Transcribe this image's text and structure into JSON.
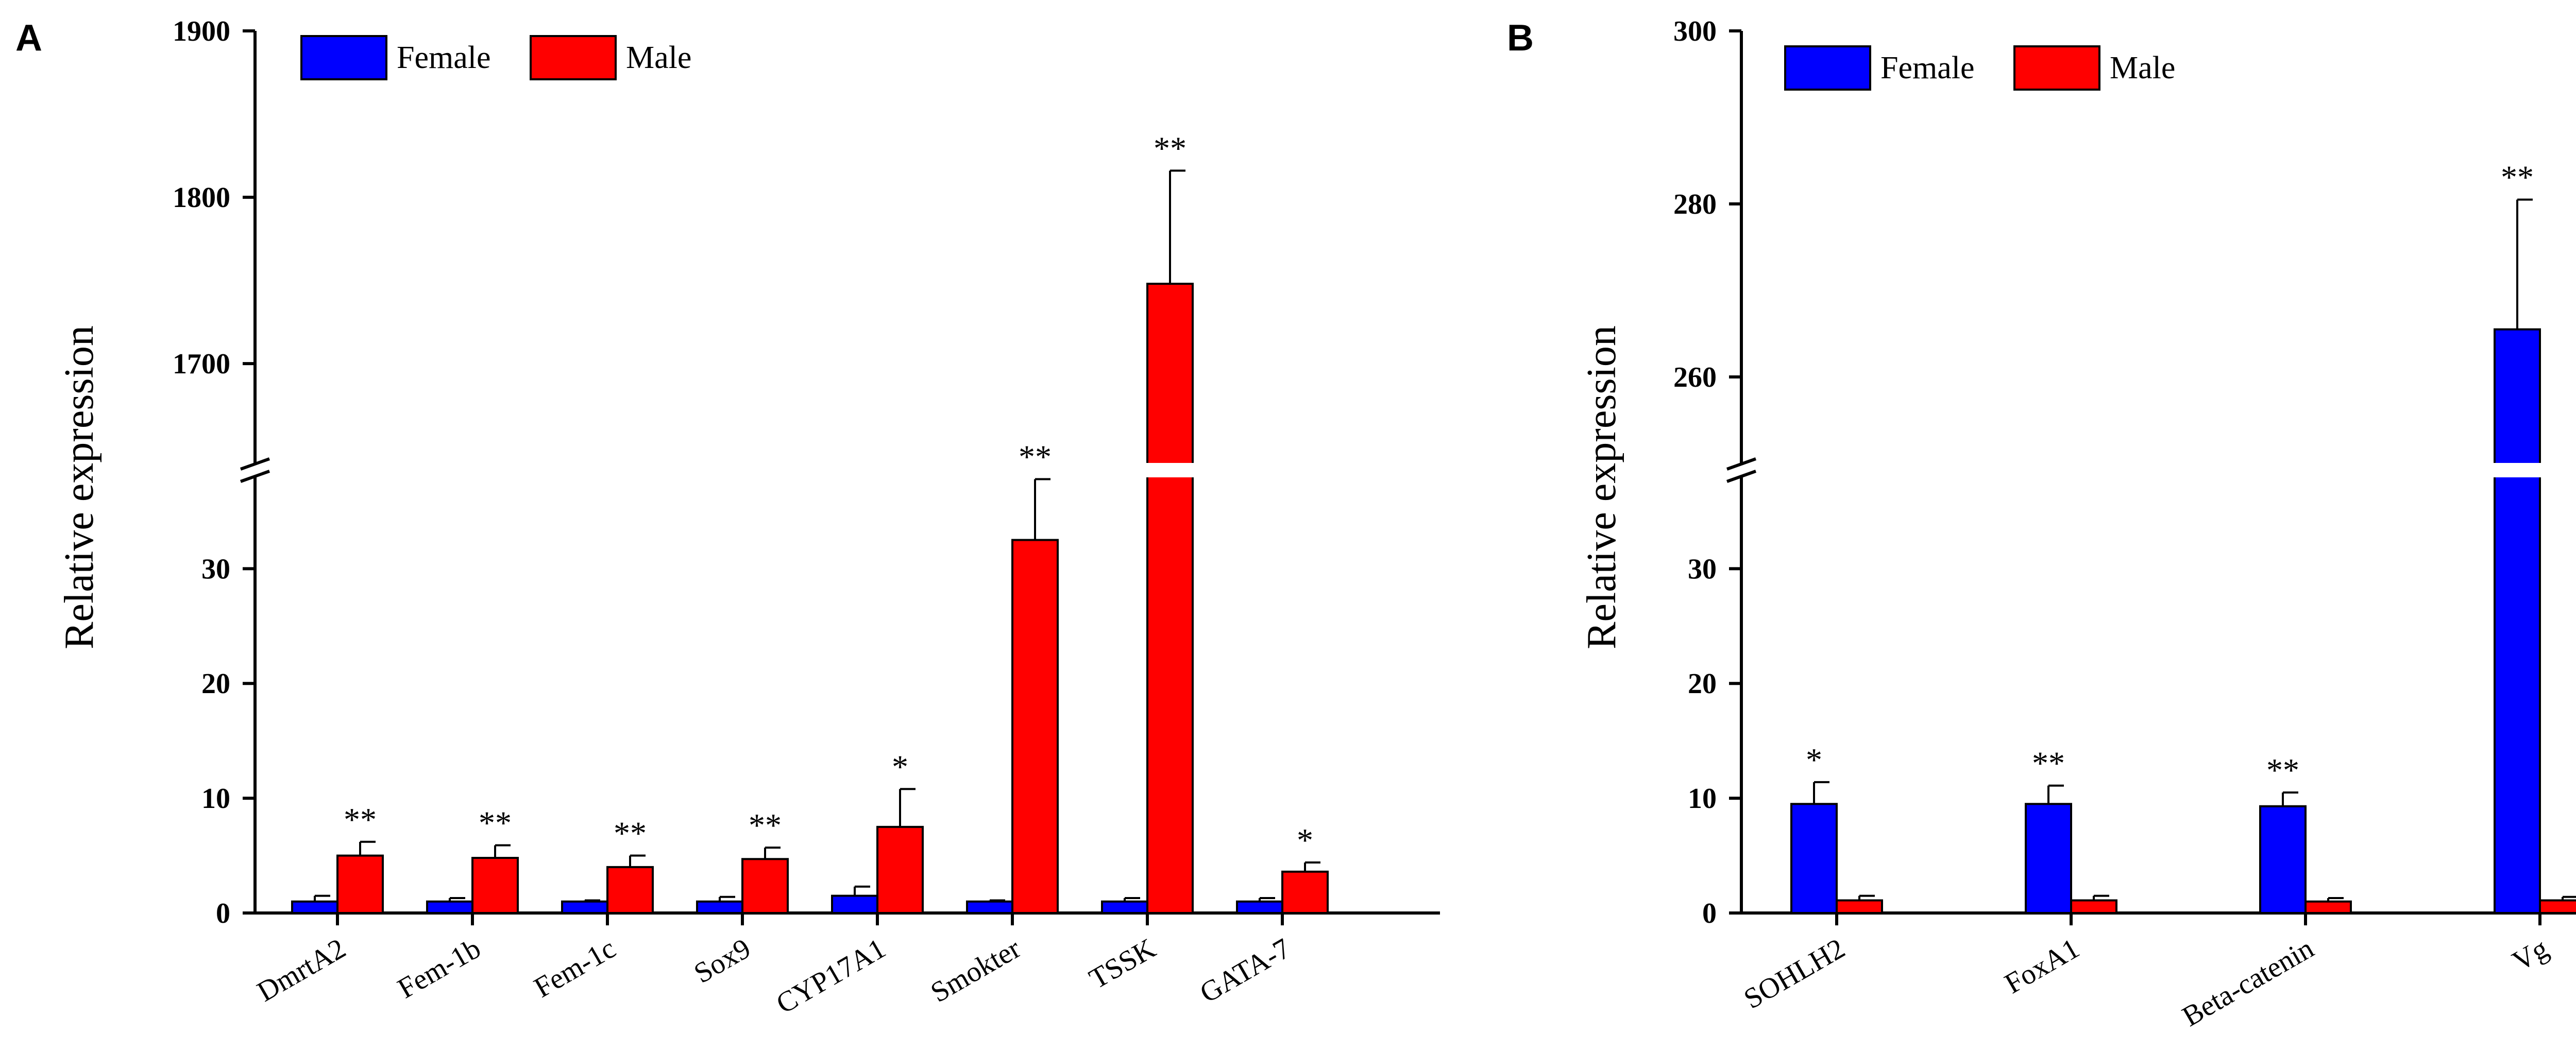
{
  "chart_data": [
    {
      "panel": "A",
      "type": "bar",
      "ylabel": "Relative expression",
      "categories": [
        "DmrtA2",
        "Fem-1b",
        "Fem-1c",
        "Sox9",
        "CYP17A1",
        "Smokter",
        "TSSK",
        "GATA-7"
      ],
      "series": [
        {
          "name": "Female",
          "color": "#0000ff",
          "values": [
            1.0,
            1.0,
            1.0,
            1.0,
            1.5,
            1.0,
            1.0,
            1.0
          ],
          "errors": [
            0.5,
            0.3,
            0.1,
            0.4,
            0.8,
            0.1,
            0.3,
            0.3
          ]
        },
        {
          "name": "Male",
          "color": "#ff0000",
          "values": [
            5.0,
            4.8,
            4.0,
            4.7,
            7.5,
            32.5,
            1748,
            3.6
          ],
          "errors": [
            1.2,
            1.1,
            1.0,
            1.0,
            3.3,
            5.3,
            68,
            0.8
          ]
        }
      ],
      "significance": [
        "**",
        "**",
        "**",
        "**",
        "*",
        "**",
        "**",
        "*"
      ],
      "axis_break": {
        "lower_range": [
          0,
          38
        ],
        "upper_range": [
          1640,
          1900
        ]
      },
      "lower_ticks": [
        "0",
        "10",
        "20",
        "30"
      ],
      "upper_ticks": [
        "1700",
        "1800",
        "1900"
      ],
      "legend_position": "top-left"
    },
    {
      "panel": "B",
      "type": "bar",
      "ylabel": "Relative expression",
      "categories": [
        "SOHLH2",
        "FoxA1",
        "Beta-catenin",
        "Vg"
      ],
      "series": [
        {
          "name": "Female",
          "color": "#0000ff",
          "values": [
            9.5,
            9.5,
            9.3,
            265.5
          ],
          "errors": [
            1.9,
            1.6,
            1.2,
            15
          ]
        },
        {
          "name": "Male",
          "color": "#ff0000",
          "values": [
            1.1,
            1.1,
            1.0,
            1.1
          ],
          "errors": [
            0.4,
            0.4,
            0.3,
            0.3
          ]
        }
      ],
      "significance": [
        "*",
        "**",
        "**",
        "**"
      ],
      "axis_break": {
        "lower_range": [
          0,
          38
        ],
        "upper_range": [
          250,
          300
        ]
      },
      "lower_ticks": [
        "0",
        "10",
        "20",
        "30"
      ],
      "upper_ticks": [
        "260",
        "280",
        "300"
      ],
      "legend_position": "top-left"
    }
  ]
}
